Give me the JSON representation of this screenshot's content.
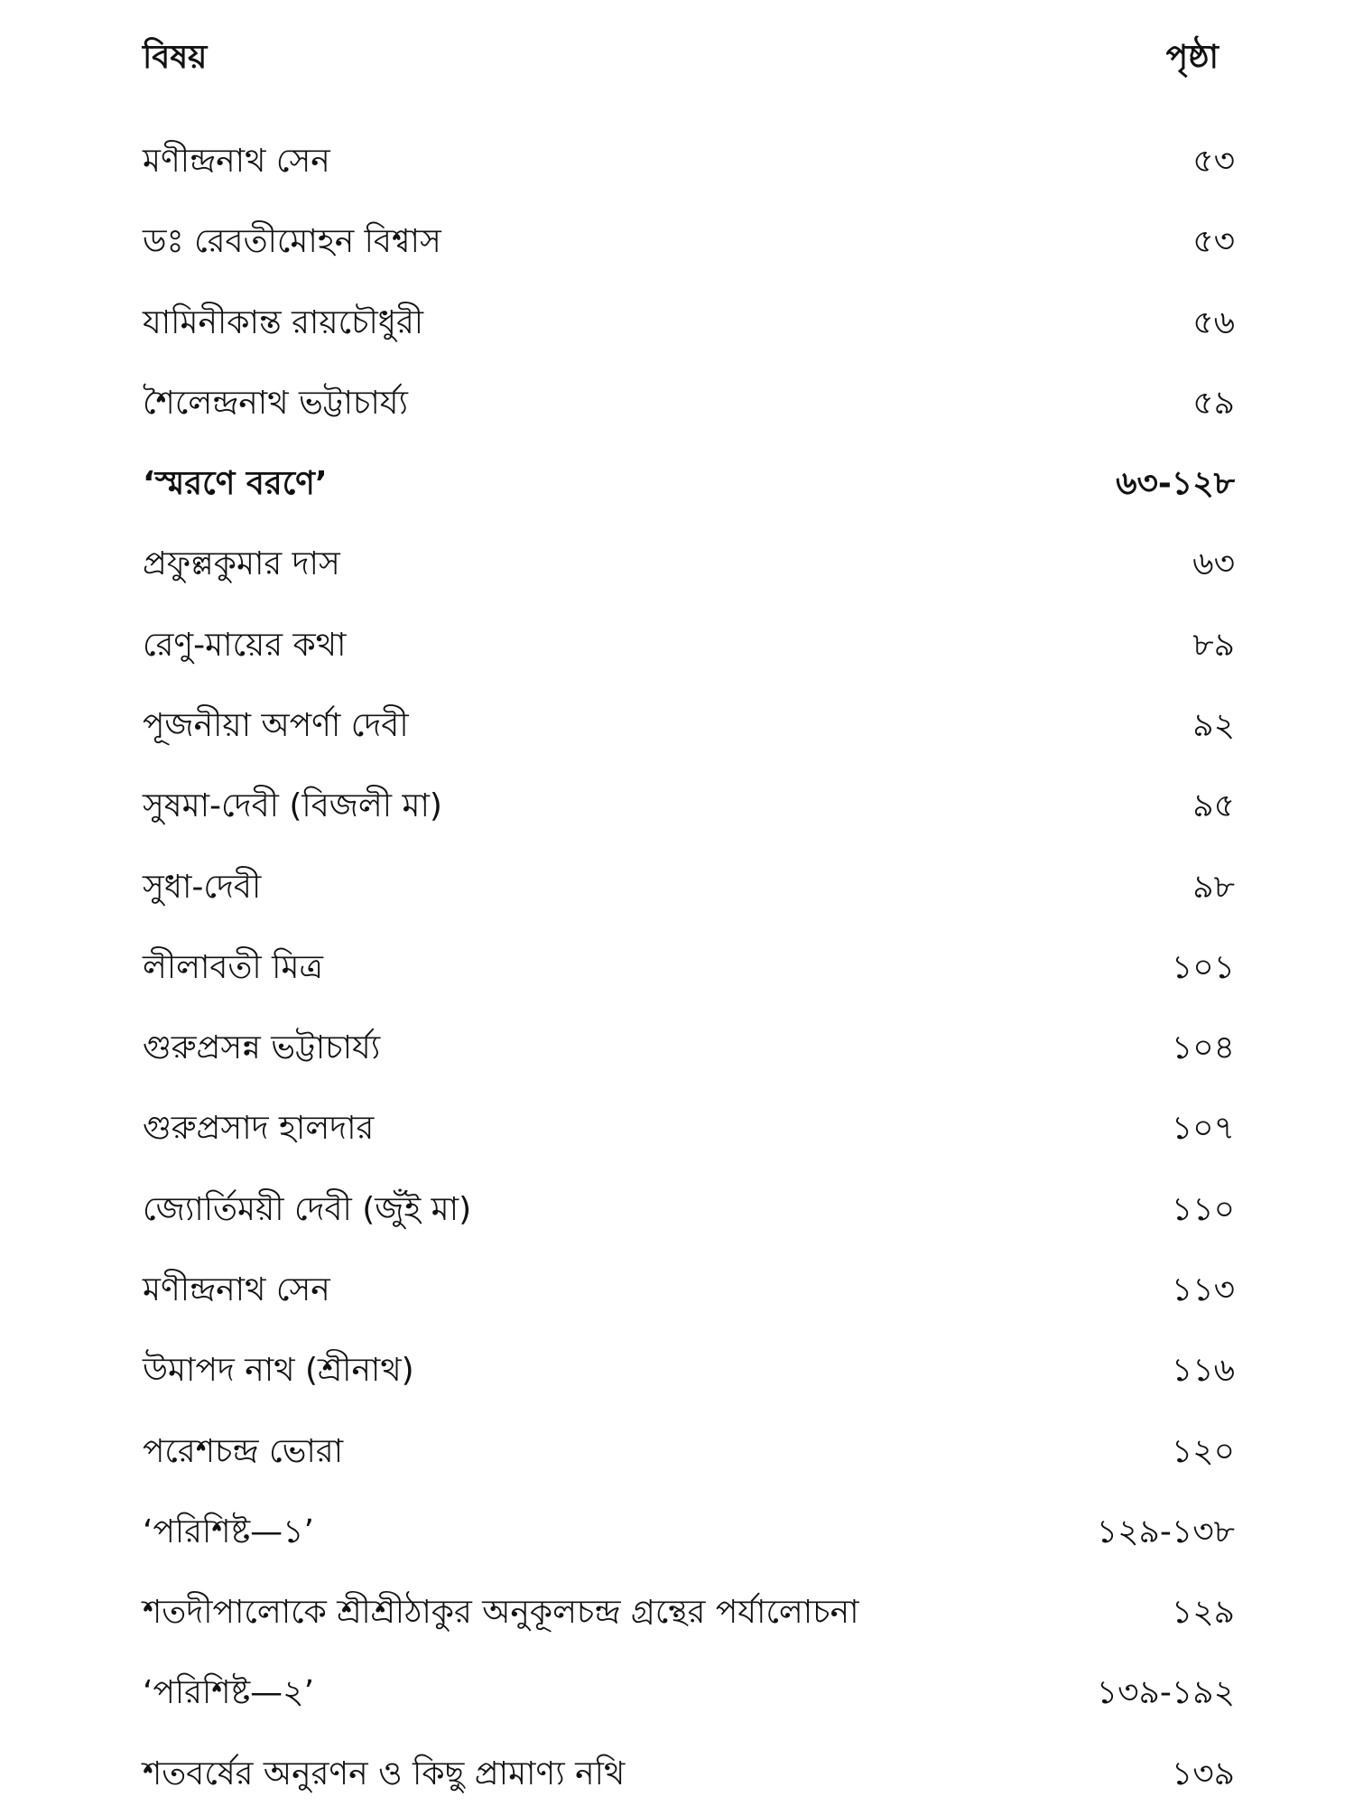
{
  "header": {
    "subject_label": "বিষয়",
    "page_label": "পৃষ্ঠা"
  },
  "entries": [
    {
      "title": "মণীন্দ্রনাথ সেন",
      "page": "৫৩"
    },
    {
      "title": "ডঃ রেবতীমোহন বিশ্বাস",
      "page": "৫৩"
    },
    {
      "title": "যামিনীকান্ত রায়চৌধুরী",
      "page": "৫৬"
    },
    {
      "title": "শৈলেন্দ্রনাথ ভট্টাচার্য্য",
      "page": "৫৯"
    },
    {
      "title": "‘স্মরণে বরণে’",
      "page": "৬৩-১২৮",
      "section": true
    },
    {
      "title": "প্রফুল্লকুমার দাস",
      "page": "৬৩"
    },
    {
      "title": "রেণু-মায়ের কথা",
      "page": "৮৯"
    },
    {
      "title": "পূজনীয়া অপর্ণা দেবী",
      "page": "৯২"
    },
    {
      "title": "সুষমা-দেবী (বিজলী মা)",
      "page": "৯৫"
    },
    {
      "title": "সুধা-দেবী",
      "page": "৯৮"
    },
    {
      "title": "লীলাবতী মিত্র",
      "page": "১০১"
    },
    {
      "title": "গুরুপ্রসন্ন ভট্টাচার্য্য",
      "page": "১০৪"
    },
    {
      "title": "গুরুপ্রসাদ হালদার",
      "page": "১০৭"
    },
    {
      "title": "জ্যোর্তিময়ী দেবী (জুঁই মা)",
      "page": "১১০"
    },
    {
      "title": "মণীন্দ্রনাথ সেন",
      "page": "১১৩"
    },
    {
      "title": "উমাপদ নাথ (শ্রীনাথ)",
      "page": "১১৬"
    },
    {
      "title": "পরেশচন্দ্র ভোরা",
      "page": "১২০"
    },
    {
      "title": "‘পরিশিষ্ট—১’",
      "page": "১২৯-১৩৮"
    },
    {
      "title": "শতদীপালোকে শ্রীশ্রীঠাকুর অনুকূলচন্দ্র গ্রন্থের পর্যালোচনা",
      "page": "১২৯"
    },
    {
      "title": "‘পরিশিষ্ট—২’",
      "page": "১৩৯-১৯২"
    },
    {
      "title": "শতবর্ষের অনুরণন ও কিছু প্রামাণ্য নথি",
      "page": "১৩৯"
    }
  ]
}
